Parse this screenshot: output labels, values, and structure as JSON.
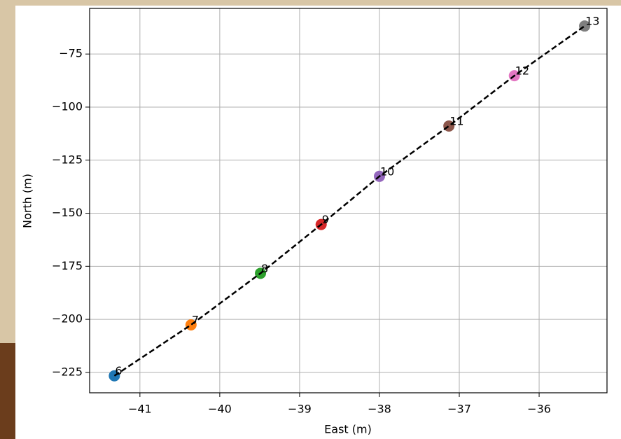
{
  "chart_data": {
    "type": "scatter",
    "xlabel": "East (m)",
    "ylabel": "North (m)",
    "x": [
      -41.32,
      -40.36,
      -39.49,
      -38.73,
      -38.0,
      -37.13,
      -36.31,
      -35.43
    ],
    "y": [
      -226.6,
      -202.6,
      -178.3,
      -155.3,
      -132.6,
      -108.9,
      -85.2,
      -61.8
    ],
    "point_labels": [
      "6",
      "7",
      "8",
      "9",
      "10",
      "11",
      "12",
      "13"
    ],
    "colors": [
      "#1f77b4",
      "#ff7f0e",
      "#2ca02c",
      "#d62728",
      "#9467bd",
      "#8c564b",
      "#e377c2",
      "#7f7f7f"
    ],
    "line_color": "#000000",
    "line_style": "dashed",
    "xlim": [
      -41.63,
      -35.15
    ],
    "ylim": [
      -234.6,
      -53.5
    ],
    "xticks": [
      {
        "value": -41,
        "label": "−41"
      },
      {
        "value": -40,
        "label": "−40"
      },
      {
        "value": -39,
        "label": "−39"
      },
      {
        "value": -38,
        "label": "−38"
      },
      {
        "value": -37,
        "label": "−37"
      },
      {
        "value": -36,
        "label": "−36"
      }
    ],
    "yticks": [
      {
        "value": -75,
        "label": "−75"
      },
      {
        "value": -100,
        "label": "−100"
      },
      {
        "value": -125,
        "label": "−125"
      },
      {
        "value": -150,
        "label": "−150"
      },
      {
        "value": -175,
        "label": "−175"
      },
      {
        "value": -200,
        "label": "−200"
      },
      {
        "value": -225,
        "label": "−225"
      }
    ],
    "grid": true
  }
}
